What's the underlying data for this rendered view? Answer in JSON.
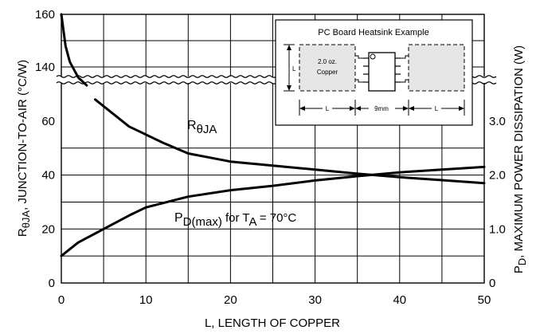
{
  "chart_data": {
    "type": "line",
    "xlabel": "L, LENGTH OF COPPER",
    "ylabel_left": "RθJA, JUNCTION-TO-AIR (°C/W)",
    "ylabel_left_parts": {
      "main": "R",
      "sub": "θJA",
      "rest": ", JUNCTION-TO-AIR (°C/W)"
    },
    "ylabel_right": "PD, MAXIMUM POWER DISSIPATION (W)",
    "ylabel_right_parts": {
      "main": "P",
      "sub": "D",
      "rest": ", MAXIMUM POWER DISSIPATION (W)"
    },
    "xlim": [
      0,
      50
    ],
    "x_ticks": [
      0,
      10,
      20,
      30,
      40,
      50
    ],
    "y_left_ticks_lower": [
      0,
      20,
      40,
      60
    ],
    "y_left_ticks_upper": [
      140,
      160
    ],
    "y_left_broken_axis": true,
    "y_right_ticks": [
      0,
      1.0,
      2.0,
      3.0
    ],
    "y_right_tick_labels": [
      "0",
      "1.0",
      "2.0",
      "3.0"
    ],
    "grid": true,
    "series": [
      {
        "name": "RθJA",
        "axis": "left",
        "x": [
          0,
          0.5,
          1,
          2,
          3,
          4,
          6,
          8,
          10,
          12,
          15,
          20,
          25,
          30,
          35,
          40,
          45,
          50
        ],
        "y": [
          160,
          148,
          142,
          136,
          133,
          68,
          63,
          58,
          55,
          52,
          48,
          45,
          43.5,
          42,
          40.5,
          39.2,
          38.1,
          37
        ]
      },
      {
        "name": "PD(max) for TA = 70°C",
        "axis": "right",
        "x": [
          0,
          2,
          5,
          8,
          10,
          15,
          20,
          25,
          30,
          35,
          40,
          45,
          50
        ],
        "y": [
          0.5,
          0.75,
          1.0,
          1.25,
          1.4,
          1.6,
          1.72,
          1.8,
          1.9,
          1.98,
          2.05,
          2.1,
          2.15
        ]
      }
    ],
    "annotations": {
      "r_label": {
        "main": "R",
        "sub": "θJA"
      },
      "pd_label": {
        "main": "P",
        "sub": "D(max)",
        "mid": " for T",
        "sub2": "A",
        "rest": " = 70°C"
      }
    },
    "inset": {
      "title": "PC Board Heatsink Example",
      "copper_label_line1": "2.0 oz.",
      "copper_label_line2": "Copper",
      "dim_left": "L",
      "dim_center": "9mm",
      "dim_right": "L",
      "dim_vertical": "L"
    }
  }
}
